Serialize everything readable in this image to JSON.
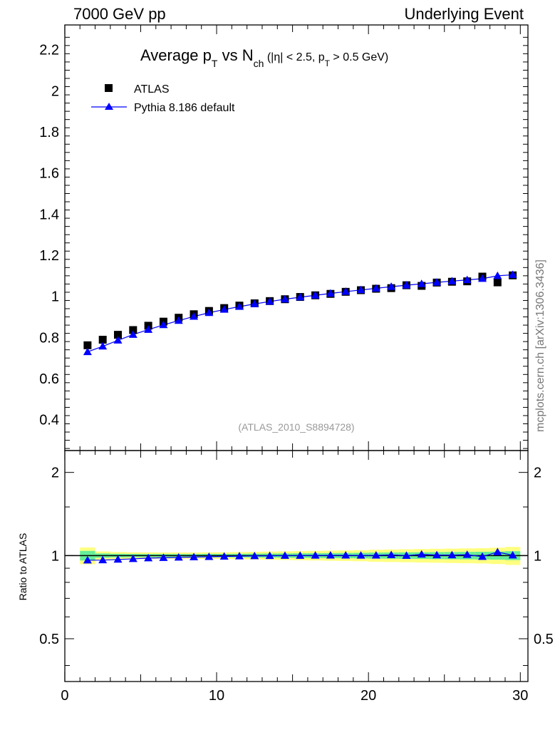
{
  "header": {
    "left": "7000 GeV pp",
    "right": "Underlying Event"
  },
  "side_label": "mcplots.cern.ch [arXiv:1306.3436]",
  "colors": {
    "atlas": "#000000",
    "pythia": "#0000ff",
    "band_outer": "#ffff80",
    "band_inner": "#66ee99"
  },
  "chart_data": [
    {
      "type": "scatter",
      "title": {
        "main": "Average p",
        "main_sub": "T",
        "mid": " vs N",
        "mid_sub": "ch",
        "cut": " (|η| < 2.5, p",
        "cut_sub": "T",
        "cut_end": " > 0.5 GeV)"
      },
      "watermark": "(ATLAS_2010_S8894728)",
      "xlim": [
        0,
        30
      ],
      "ylim": [
        0.25,
        2.32
      ],
      "yticks": [
        "0.4",
        "0.6",
        "0.8",
        "1",
        "1.2",
        "1.4",
        "1.6",
        "1.8",
        "2",
        "2.2"
      ],
      "legend": [
        "ATLAS",
        "Pythia 8.186 default"
      ],
      "legend_position": "top-left",
      "x": [
        1.5,
        2.5,
        3.5,
        4.5,
        5.5,
        6.5,
        7.5,
        8.5,
        9.5,
        10.5,
        11.5,
        12.5,
        13.5,
        14.5,
        15.5,
        16.5,
        17.5,
        18.5,
        19.5,
        20.5,
        21.5,
        22.5,
        23.5,
        24.5,
        25.5,
        26.5,
        27.5,
        28.5,
        29.5
      ],
      "series": [
        {
          "name": "ATLAS",
          "marker": "square",
          "values": [
            0.762,
            0.789,
            0.813,
            0.836,
            0.857,
            0.877,
            0.896,
            0.913,
            0.929,
            0.943,
            0.955,
            0.966,
            0.977,
            0.986,
            0.997,
            1.005,
            1.012,
            1.022,
            1.03,
            1.037,
            1.04,
            1.054,
            1.051,
            1.067,
            1.071,
            1.073,
            1.096,
            1.068,
            1.102
          ]
        },
        {
          "name": "Pythia 8.186 default",
          "marker": "triangle",
          "values": [
            0.73,
            0.757,
            0.786,
            0.814,
            0.838,
            0.861,
            0.882,
            0.902,
            0.92,
            0.936,
            0.95,
            0.963,
            0.975,
            0.986,
            0.996,
            1.005,
            1.014,
            1.023,
            1.031,
            1.039,
            1.047,
            1.054,
            1.061,
            1.068,
            1.074,
            1.08,
            1.086,
            1.1,
            1.105
          ]
        }
      ]
    },
    {
      "type": "scatter",
      "ylabel": "Ratio to ATLAS",
      "xlim": [
        0,
        30
      ],
      "ylim": [
        0.35,
        2.4
      ],
      "yscale": "log",
      "yticks": [
        "0.5",
        "1",
        "2"
      ],
      "xticks": [
        "0",
        "10",
        "20",
        "30"
      ],
      "x": [
        1.5,
        2.5,
        3.5,
        4.5,
        5.5,
        6.5,
        7.5,
        8.5,
        9.5,
        10.5,
        11.5,
        12.5,
        13.5,
        14.5,
        15.5,
        16.5,
        17.5,
        18.5,
        19.5,
        20.5,
        21.5,
        22.5,
        23.5,
        24.5,
        25.5,
        26.5,
        27.5,
        28.5,
        29.5
      ],
      "band_outer": [
        0.07,
        0.035,
        0.03,
        0.028,
        0.027,
        0.026,
        0.026,
        0.026,
        0.027,
        0.028,
        0.03,
        0.032,
        0.034,
        0.036,
        0.038,
        0.04,
        0.042,
        0.044,
        0.046,
        0.05,
        0.052,
        0.054,
        0.056,
        0.058,
        0.06,
        0.062,
        0.064,
        0.068,
        0.075
      ],
      "band_inner": [
        0.04,
        0.018,
        0.015,
        0.014,
        0.013,
        0.013,
        0.013,
        0.013,
        0.014,
        0.014,
        0.015,
        0.016,
        0.017,
        0.018,
        0.019,
        0.02,
        0.021,
        0.022,
        0.023,
        0.025,
        0.026,
        0.027,
        0.028,
        0.029,
        0.03,
        0.031,
        0.032,
        0.034,
        0.037
      ],
      "series": [
        {
          "name": "Pythia 8.186 default",
          "marker": "triangle",
          "values": [
            0.962,
            0.963,
            0.968,
            0.973,
            0.979,
            0.982,
            0.985,
            0.988,
            0.99,
            0.993,
            0.995,
            0.997,
            0.998,
            1.0,
            1.0,
            1.001,
            1.002,
            1.002,
            1.001,
            1.002,
            1.006,
            1.0,
            1.01,
            1.004,
            1.004,
            1.007,
            0.991,
            1.03,
            1.003
          ]
        }
      ]
    }
  ]
}
